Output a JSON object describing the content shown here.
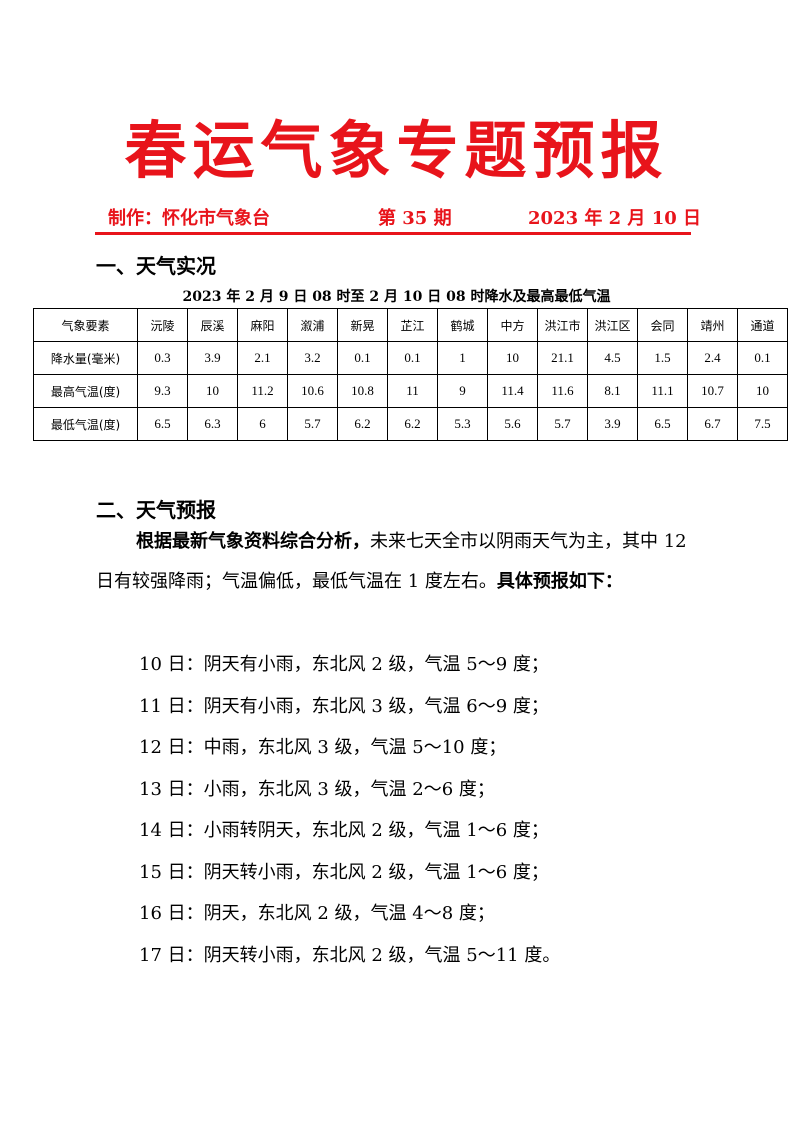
{
  "title": "春运气象专题预报",
  "header": {
    "maker": "制作：怀化市气象台",
    "issue": "第 35 期",
    "date": "2023 年 2 月 10 日"
  },
  "section1": "一、天气实况",
  "table": {
    "caption": "2023 年 2 月 9 日 08 时至 2 月 10 日 08 时降水及最高最低气温",
    "columns": [
      "气象要素",
      "沅陵",
      "辰溪",
      "麻阳",
      "溆浦",
      "新晃",
      "芷江",
      "鹤城",
      "中方",
      "洪江市",
      "洪江区",
      "会同",
      "靖州",
      "通道"
    ],
    "rows": [
      [
        "降水量(毫米)",
        "0.3",
        "3.9",
        "2.1",
        "3.2",
        "0.1",
        "0.1",
        "1",
        "10",
        "21.1",
        "4.5",
        "1.5",
        "2.4",
        "0.1"
      ],
      [
        "最高气温(度)",
        "9.3",
        "10",
        "11.2",
        "10.6",
        "10.8",
        "11",
        "9",
        "11.4",
        "11.6",
        "8.1",
        "11.1",
        "10.7",
        "10"
      ],
      [
        "最低气温(度)",
        "6.5",
        "6.3",
        "6",
        "5.7",
        "6.2",
        "6.2",
        "5.3",
        "5.6",
        "5.7",
        "3.9",
        "6.5",
        "6.7",
        "7.5"
      ]
    ]
  },
  "section2": "二、天气预报",
  "summary": {
    "bold1": "根据最新气象资料综合分析，",
    "text": "未来七天全市以阴雨天气为主，其中 12 日有较强降雨；气温偏低，最低气温在 1 度左右。",
    "bold2": "具体预报如下："
  },
  "forecast": [
    "10 日：阴天有小雨，东北风 2 级，气温 5～9 度；",
    "11 日：阴天有小雨，东北风 3 级，气温 6～9 度；",
    "12 日：中雨，东北风 3 级，气温 5～10 度；",
    "13 日：小雨，东北风 3 级，气温 2～6 度；",
    "14 日：小雨转阴天，东北风 2 级，气温 1～6 度；",
    "15 日：阴天转小雨，东北风 2 级，气温 1～6 度；",
    "16 日：阴天，东北风 2 级，气温 4～8 度；",
    "17 日：阴天转小雨，东北风 2 级，气温 5～11 度。"
  ]
}
